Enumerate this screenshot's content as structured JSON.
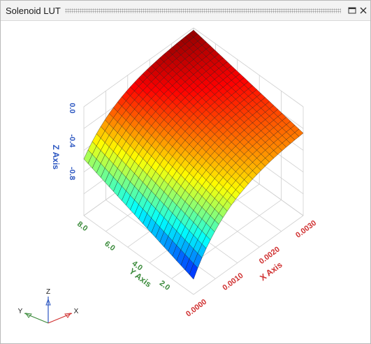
{
  "window": {
    "title": "Solenoid LUT",
    "maximize_icon": "maximize-icon",
    "close_icon": "close-icon"
  },
  "colors": {
    "x_axis": "#d03030",
    "y_axis": "#3a8a3a",
    "z_axis": "#2a55c0",
    "grid": "#cfcfcf",
    "mesh": "#1a1a1a"
  },
  "chart_data": {
    "type": "surface",
    "title": "",
    "xlabel": "X Axis",
    "ylabel": "Y Axis",
    "zlabel": "Z Axis",
    "x_ticks": [
      "0.0000",
      "0.0010",
      "0.0020",
      "0.0030"
    ],
    "y_ticks": [
      "8.0",
      "6.0",
      "4.0",
      "2.0"
    ],
    "z_ticks": [
      "0.0",
      "-0.4",
      "-0.8"
    ],
    "xlim": [
      0,
      0.0032
    ],
    "ylim": [
      1.5,
      8.0
    ],
    "zlim": [
      -1.2,
      0.0
    ],
    "colormap": "jet",
    "triad_labels": {
      "x": "X",
      "y": "Y",
      "z": "Z"
    }
  }
}
